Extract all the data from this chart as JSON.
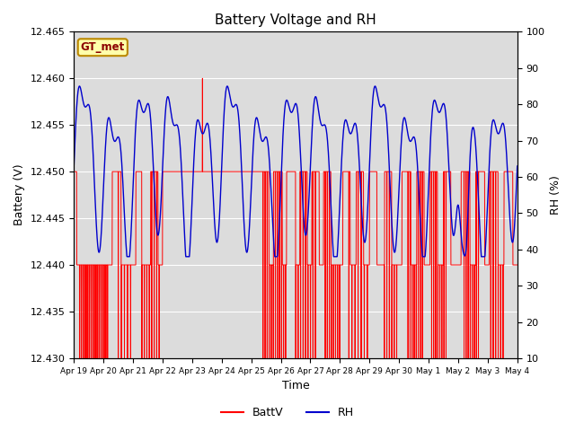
{
  "title": "Battery Voltage and RH",
  "xlabel": "Time",
  "ylabel_left": "Battery (V)",
  "ylabel_right": "RH (%)",
  "ylim_left": [
    12.43,
    12.465
  ],
  "ylim_right": [
    10,
    100
  ],
  "yticks_left": [
    12.43,
    12.435,
    12.44,
    12.445,
    12.45,
    12.455,
    12.46,
    12.465
  ],
  "yticks_right": [
    10,
    20,
    30,
    40,
    50,
    60,
    70,
    80,
    90,
    100
  ],
  "xtick_labels": [
    "Apr 19",
    "Apr 20",
    "Apr 21",
    "Apr 22",
    "Apr 23",
    "Apr 24",
    "Apr 25",
    "Apr 26",
    "Apr 27",
    "Apr 28",
    "Apr 29",
    "Apr 30",
    "May 1",
    "May 2",
    "May 3",
    "May 4"
  ],
  "plot_bg_color": "#dcdcdc",
  "fig_bg_color": "#ffffff",
  "legend_label_batt": "BattV",
  "legend_label_rh": "RH",
  "batt_color": "#ff0000",
  "rh_color": "#0000cd",
  "watermark_text": "GT_met",
  "watermark_bg": "#ffffaa",
  "watermark_border": "#bb8800",
  "n_days": 15,
  "n_points": 2160
}
